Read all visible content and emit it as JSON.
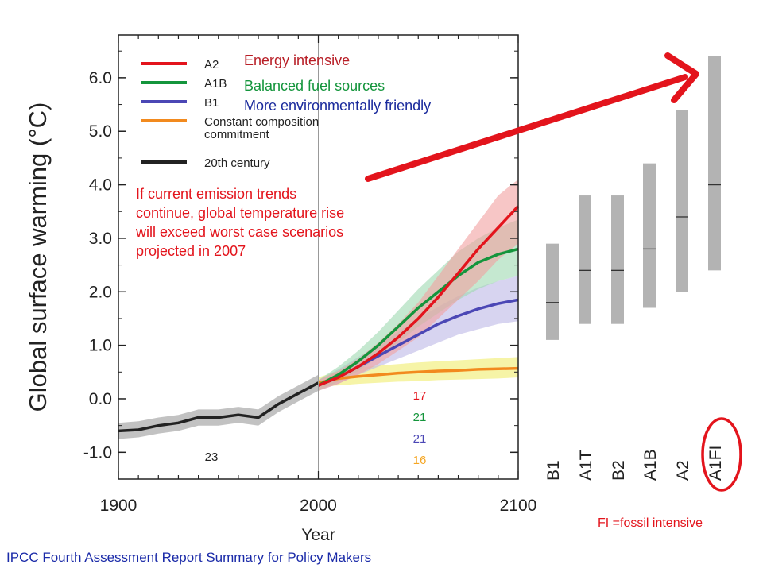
{
  "chart_data": {
    "type": "line",
    "ylabel": "Global surface warming (°C)",
    "xlabel": "Year",
    "xlim": [
      1900,
      2100
    ],
    "ylim": [
      -1.5,
      6.8
    ],
    "x_ticks": [
      "1900",
      "2000",
      "2100"
    ],
    "y_ticks": [
      "-1.0",
      "0.0",
      "1.0",
      "2.0",
      "3.0",
      "4.0",
      "5.0",
      "6.0"
    ],
    "legend_position": "top-left",
    "grid": false,
    "series": [
      {
        "name": "A2",
        "color": "#e3141c",
        "band_color": "#f2a0a0",
        "x": [
          2000,
          2010,
          2020,
          2030,
          2040,
          2050,
          2060,
          2070,
          2080,
          2090,
          2100
        ],
        "values": [
          0.25,
          0.4,
          0.6,
          0.85,
          1.15,
          1.5,
          1.9,
          2.35,
          2.8,
          3.2,
          3.6
        ],
        "band_low": [
          0.15,
          0.28,
          0.45,
          0.65,
          0.9,
          1.15,
          1.5,
          1.85,
          2.2,
          2.6,
          2.9
        ],
        "band_high": [
          0.35,
          0.52,
          0.75,
          1.05,
          1.4,
          1.8,
          2.3,
          2.8,
          3.3,
          3.8,
          4.1
        ]
      },
      {
        "name": "A1B",
        "color": "#14953c",
        "band_color": "#9fd9b0",
        "x": [
          2000,
          2010,
          2020,
          2030,
          2040,
          2050,
          2060,
          2070,
          2080,
          2090,
          2100
        ],
        "values": [
          0.25,
          0.45,
          0.7,
          1.0,
          1.35,
          1.7,
          2.0,
          2.3,
          2.55,
          2.7,
          2.8
        ],
        "band_low": [
          0.15,
          0.32,
          0.52,
          0.78,
          1.05,
          1.35,
          1.6,
          1.85,
          2.05,
          2.2,
          2.3
        ],
        "band_high": [
          0.35,
          0.6,
          0.9,
          1.25,
          1.65,
          2.05,
          2.4,
          2.75,
          3.0,
          3.2,
          3.35
        ]
      },
      {
        "name": "B1",
        "color": "#4b47b5",
        "band_color": "#bcb8e6",
        "x": [
          2000,
          2010,
          2020,
          2030,
          2040,
          2050,
          2060,
          2070,
          2080,
          2090,
          2100
        ],
        "values": [
          0.25,
          0.4,
          0.6,
          0.8,
          1.0,
          1.2,
          1.4,
          1.55,
          1.68,
          1.78,
          1.85
        ],
        "band_low": [
          0.15,
          0.28,
          0.45,
          0.6,
          0.75,
          0.9,
          1.05,
          1.2,
          1.3,
          1.4,
          1.45
        ],
        "band_high": [
          0.35,
          0.55,
          0.78,
          1.0,
          1.25,
          1.5,
          1.72,
          1.92,
          2.08,
          2.2,
          2.3
        ]
      },
      {
        "name": "Constant composition commitment",
        "color": "#f28a1e",
        "band_color": "#f0ec6c",
        "x": [
          2000,
          2010,
          2020,
          2030,
          2040,
          2050,
          2060,
          2070,
          2080,
          2090,
          2100
        ],
        "values": [
          0.3,
          0.38,
          0.42,
          0.45,
          0.48,
          0.5,
          0.52,
          0.53,
          0.55,
          0.56,
          0.57
        ],
        "band_low": [
          0.22,
          0.25,
          0.28,
          0.3,
          0.32,
          0.33,
          0.35,
          0.36,
          0.37,
          0.38,
          0.4
        ],
        "band_high": [
          0.4,
          0.52,
          0.58,
          0.62,
          0.65,
          0.68,
          0.7,
          0.72,
          0.74,
          0.76,
          0.78
        ]
      },
      {
        "name": "20th century",
        "color": "#222222",
        "band_color": "#9a9a9a",
        "x": [
          1900,
          1910,
          1920,
          1930,
          1940,
          1950,
          1960,
          1970,
          1980,
          1990,
          2000
        ],
        "values": [
          -0.6,
          -0.58,
          -0.5,
          -0.45,
          -0.35,
          -0.35,
          -0.3,
          -0.35,
          -0.1,
          0.1,
          0.3
        ],
        "band_low": [
          -0.75,
          -0.72,
          -0.65,
          -0.6,
          -0.5,
          -0.5,
          -0.45,
          -0.5,
          -0.25,
          -0.05,
          0.15
        ],
        "band_high": [
          -0.45,
          -0.42,
          -0.35,
          -0.3,
          -0.2,
          -0.2,
          -0.15,
          -0.2,
          0.05,
          0.25,
          0.45
        ]
      }
    ],
    "legend": [
      {
        "label": "A2",
        "color": "#e3141c"
      },
      {
        "label": "A1B",
        "color": "#14953c"
      },
      {
        "label": "B1",
        "color": "#4b47b5"
      },
      {
        "label": "Constant composition",
        "label2": "commitment",
        "color": "#f28a1e"
      },
      {
        "label": "20th century",
        "color": "#222222"
      }
    ],
    "model_counts": [
      {
        "text": "17",
        "color": "#e3141c"
      },
      {
        "text": "21",
        "color": "#14953c"
      },
      {
        "text": "21",
        "color": "#4b47b5"
      },
      {
        "text": "16",
        "color": "#f5a623"
      }
    ],
    "hist_count": {
      "text": "23",
      "color": "#222222"
    },
    "range_bars": [
      {
        "label": "B1",
        "low": 1.1,
        "best": 1.8,
        "high": 2.9
      },
      {
        "label": "A1T",
        "low": 1.4,
        "best": 2.4,
        "high": 3.8
      },
      {
        "label": "B2",
        "low": 1.4,
        "best": 2.4,
        "high": 3.8
      },
      {
        "label": "A1B",
        "low": 1.7,
        "best": 2.8,
        "high": 4.4
      },
      {
        "label": "A2",
        "low": 2.0,
        "best": 3.4,
        "high": 5.4
      },
      {
        "label": "A1FI",
        "low": 2.4,
        "best": 4.0,
        "high": 6.4
      }
    ],
    "colors": {
      "bar": "#b3b3b3",
      "axis": "#222222",
      "highlight": "#e3141c",
      "divider": "#999999"
    }
  },
  "annotations": {
    "a2_desc": {
      "text": "Energy intensive",
      "color": "#b81e26"
    },
    "a1b_desc": {
      "text": "Balanced fuel sources",
      "color": "#14953c"
    },
    "b1_desc": {
      "text": "More environmentally friendly",
      "color": "#1a2a9c"
    },
    "note_lines": [
      "If current emission trends",
      "continue, global temperature rise",
      "will exceed worst case scenarios",
      "projected in 2007"
    ],
    "fi_note": "FI =fossil intensive",
    "source": "IPCC Fourth Assessment Report Summary for Policy Makers"
  }
}
